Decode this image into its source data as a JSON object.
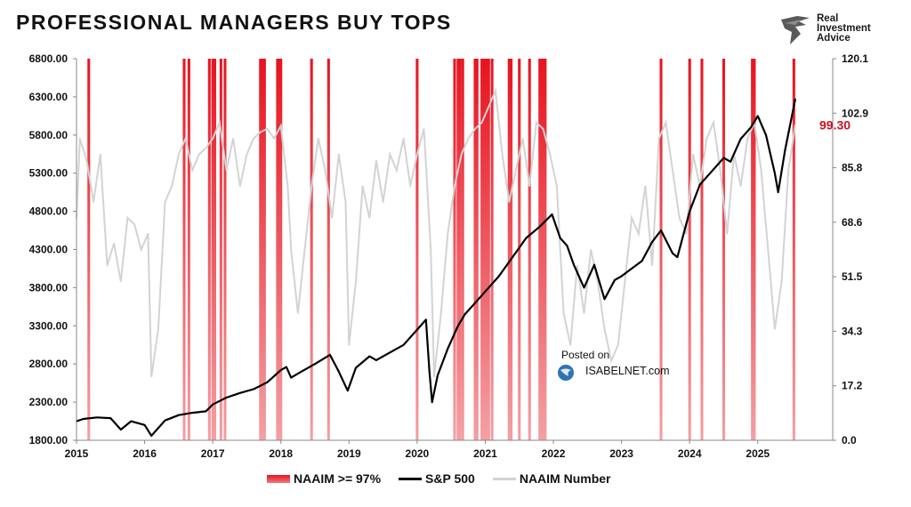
{
  "title": "PROFESSIONAL MANAGERS BUY TOPS",
  "brand": {
    "line1": "Real",
    "line2": "Investment",
    "line3": "Advice"
  },
  "watermark": {
    "posted": "Posted on",
    "site": "ISABELNET.com"
  },
  "colors": {
    "sp500": "#000000",
    "naaim": "#d3d3d3",
    "highlight": "#e8131f",
    "last_value": "#d0101a"
  },
  "chart_data": {
    "type": "line",
    "title": "PROFESSIONAL MANAGERS BUY TOPS",
    "x_range": [
      2015.0,
      2026.1
    ],
    "x_ticks": [
      "2015",
      "2016",
      "2017",
      "2018",
      "2019",
      "2020",
      "2021",
      "2022",
      "2023",
      "2024",
      "2025"
    ],
    "y_left": {
      "range": [
        1800,
        6800
      ],
      "ticks": [
        "1800.00",
        "2300.00",
        "2800.00",
        "3300.00",
        "3800.00",
        "4300.00",
        "4800.00",
        "5300.00",
        "5800.00",
        "6300.00",
        "6800.00"
      ]
    },
    "y_right": {
      "range": [
        0,
        120.1
      ],
      "ticks": [
        "0.0",
        "17.2",
        "34.3",
        "51.5",
        "68.6",
        "85.8",
        "102.9",
        "120.1"
      ]
    },
    "last_value_label": "99.30",
    "legend": [
      {
        "label": "NAAIM >= 97%",
        "style": "red-band"
      },
      {
        "label": "S&P 500",
        "style": "black-line"
      },
      {
        "label": "NAAIM Number",
        "style": "gray-line"
      }
    ],
    "sp500": {
      "x": [
        2015.0,
        2015.1,
        2015.3,
        2015.5,
        2015.65,
        2015.8,
        2016.0,
        2016.1,
        2016.3,
        2016.5,
        2016.7,
        2016.9,
        2017.0,
        2017.2,
        2017.4,
        2017.6,
        2017.8,
        2018.0,
        2018.08,
        2018.15,
        2018.3,
        2018.5,
        2018.72,
        2018.85,
        2018.98,
        2019.1,
        2019.3,
        2019.4,
        2019.6,
        2019.8,
        2020.0,
        2020.13,
        2020.18,
        2020.22,
        2020.3,
        2020.45,
        2020.6,
        2020.7,
        2020.85,
        2021.0,
        2021.2,
        2021.4,
        2021.6,
        2021.8,
        2021.98,
        2022.1,
        2022.2,
        2022.3,
        2022.45,
        2022.6,
        2022.75,
        2022.9,
        2023.0,
        2023.15,
        2023.3,
        2023.45,
        2023.58,
        2023.75,
        2023.82,
        2024.0,
        2024.15,
        2024.3,
        2024.5,
        2024.6,
        2024.75,
        2024.9,
        2025.0,
        2025.12,
        2025.25,
        2025.3,
        2025.4,
        2025.55
      ],
      "y": [
        2050,
        2080,
        2100,
        2090,
        1940,
        2050,
        2000,
        1860,
        2060,
        2130,
        2160,
        2180,
        2270,
        2360,
        2420,
        2470,
        2560,
        2720,
        2760,
        2620,
        2700,
        2800,
        2920,
        2700,
        2450,
        2750,
        2900,
        2850,
        2950,
        3050,
        3250,
        3380,
        2700,
        2300,
        2650,
        3000,
        3300,
        3450,
        3600,
        3750,
        3950,
        4200,
        4450,
        4600,
        4760,
        4450,
        4350,
        4100,
        3800,
        4100,
        3650,
        3900,
        3950,
        4050,
        4150,
        4400,
        4550,
        4250,
        4200,
        4800,
        5150,
        5300,
        5500,
        5450,
        5750,
        5900,
        6050,
        5800,
        5300,
        5050,
        5600,
        6270
      ]
    },
    "naaim": {
      "x": [
        2015.0,
        2015.05,
        2015.15,
        2015.25,
        2015.35,
        2015.45,
        2015.55,
        2015.65,
        2015.75,
        2015.85,
        2015.95,
        2016.05,
        2016.1,
        2016.2,
        2016.3,
        2016.4,
        2016.5,
        2016.6,
        2016.7,
        2016.8,
        2016.9,
        2017.0,
        2017.1,
        2017.2,
        2017.3,
        2017.4,
        2017.5,
        2017.6,
        2017.7,
        2017.8,
        2017.9,
        2018.0,
        2018.1,
        2018.15,
        2018.25,
        2018.35,
        2018.45,
        2018.55,
        2018.65,
        2018.75,
        2018.85,
        2018.95,
        2019.0,
        2019.1,
        2019.2,
        2019.3,
        2019.4,
        2019.5,
        2019.6,
        2019.7,
        2019.8,
        2019.9,
        2020.0,
        2020.1,
        2020.2,
        2020.25,
        2020.35,
        2020.45,
        2020.55,
        2020.65,
        2020.75,
        2020.85,
        2020.95,
        2021.05,
        2021.15,
        2021.25,
        2021.35,
        2021.45,
        2021.55,
        2021.65,
        2021.75,
        2021.85,
        2021.95,
        2022.05,
        2022.15,
        2022.25,
        2022.35,
        2022.45,
        2022.55,
        2022.65,
        2022.75,
        2022.85,
        2022.95,
        2023.05,
        2023.15,
        2023.25,
        2023.35,
        2023.45,
        2023.55,
        2023.65,
        2023.75,
        2023.85,
        2023.95,
        2024.05,
        2024.15,
        2024.25,
        2024.35,
        2024.45,
        2024.55,
        2024.65,
        2024.75,
        2024.85,
        2024.95,
        2025.05,
        2025.15,
        2025.25,
        2025.35,
        2025.45,
        2025.55
      ],
      "y": [
        70,
        95,
        88,
        75,
        90,
        55,
        62,
        50,
        70,
        68,
        60,
        65,
        20,
        35,
        75,
        80,
        90,
        95,
        85,
        90,
        92,
        95,
        100,
        85,
        95,
        80,
        90,
        95,
        97,
        98,
        95,
        99,
        80,
        60,
        40,
        60,
        80,
        95,
        85,
        70,
        90,
        75,
        30,
        50,
        80,
        70,
        88,
        75,
        90,
        85,
        95,
        80,
        90,
        98,
        60,
        20,
        40,
        65,
        80,
        90,
        95,
        98,
        100,
        105,
        110,
        90,
        75,
        85,
        95,
        80,
        100,
        98,
        90,
        80,
        40,
        30,
        55,
        40,
        60,
        50,
        35,
        25,
        30,
        50,
        70,
        65,
        80,
        55,
        95,
        100,
        85,
        70,
        65,
        90,
        80,
        95,
        100,
        85,
        65,
        90,
        80,
        95,
        100,
        85,
        60,
        35,
        50,
        85,
        99.3
      ]
    },
    "highlight_weeks": [
      2015.18,
      2016.58,
      2016.65,
      2016.95,
      2017.0,
      2017.03,
      2017.12,
      2017.18,
      2017.7,
      2017.73,
      2017.76,
      2017.95,
      2017.98,
      2018.0,
      2018.45,
      2018.7,
      2020.0,
      2020.55,
      2020.6,
      2020.63,
      2020.67,
      2020.85,
      2020.88,
      2020.95,
      2020.98,
      2021.0,
      2021.02,
      2021.05,
      2021.1,
      2021.35,
      2021.38,
      2021.5,
      2021.65,
      2021.8,
      2021.83,
      2021.86,
      2021.88,
      2023.58,
      2024.0,
      2024.18,
      2024.5,
      2024.92,
      2024.95,
      2025.53
    ],
    "highlight_band_weeks": 0.04
  }
}
